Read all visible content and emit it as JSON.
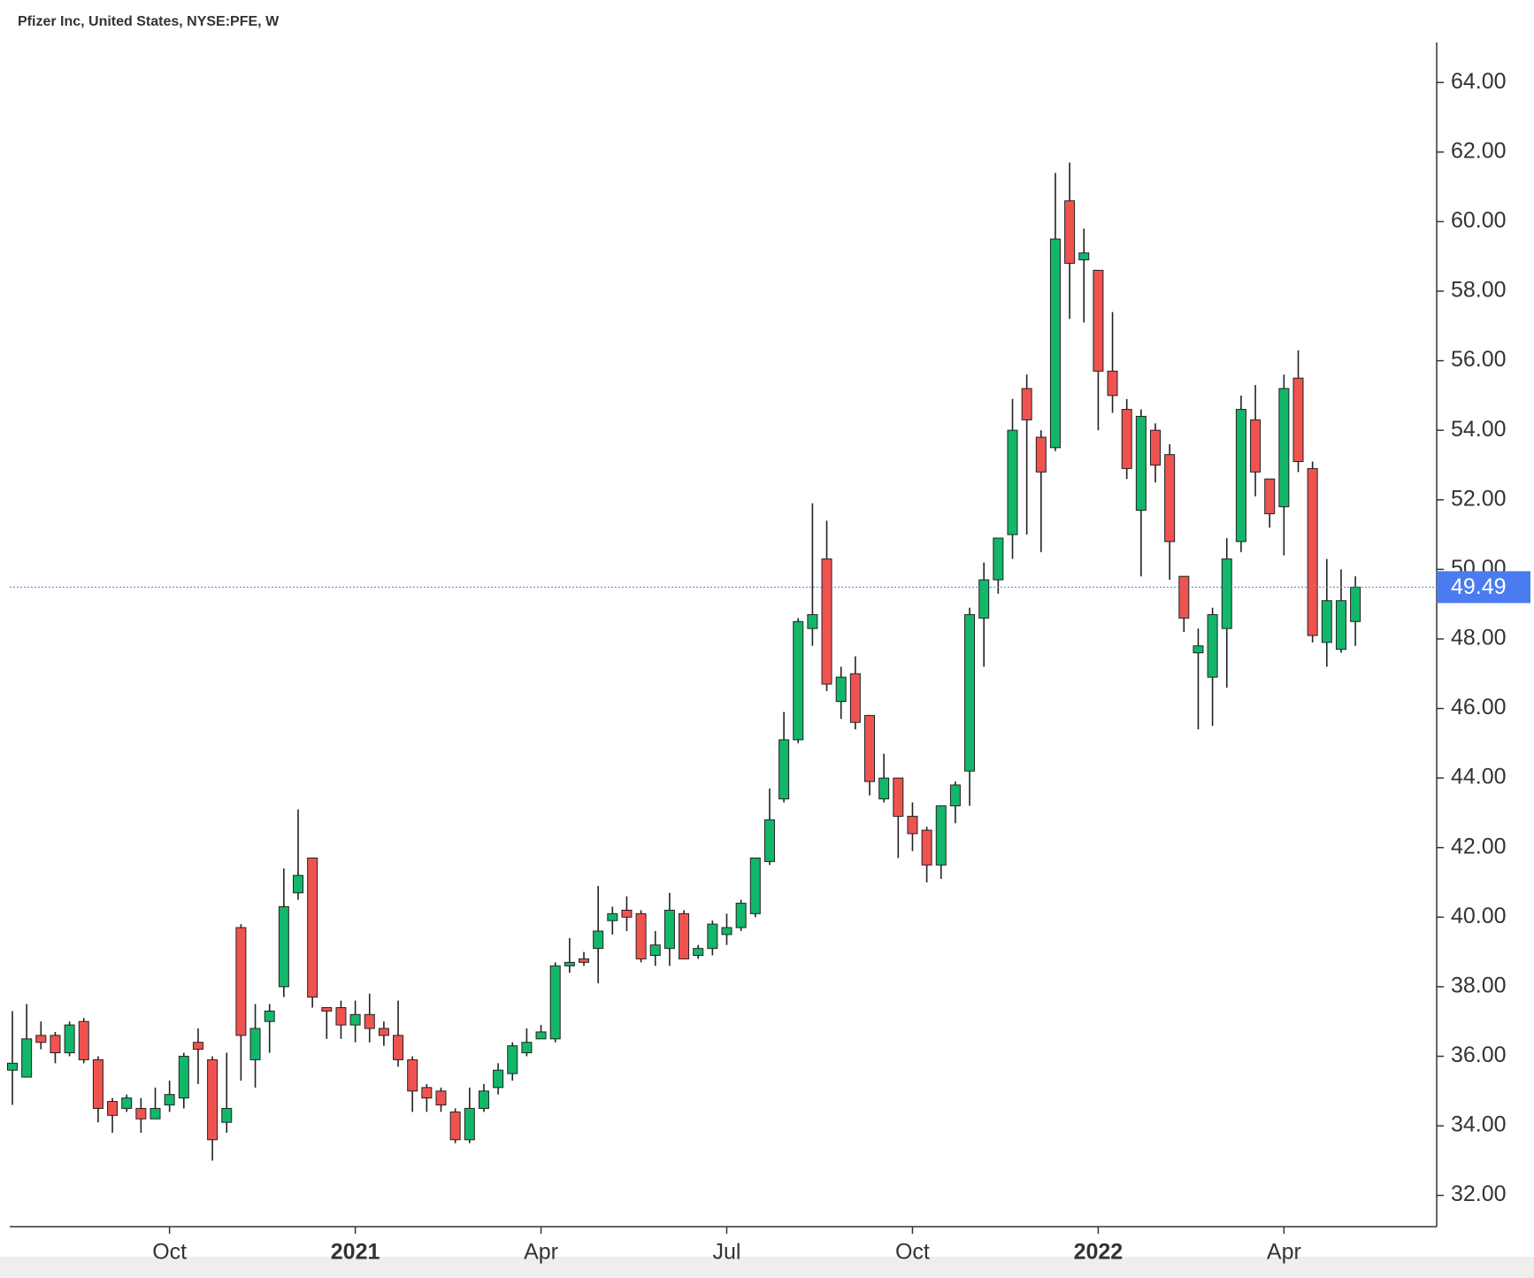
{
  "chart_data": {
    "type": "candlestick",
    "title": "Pfizer Inc, United States, NYSE:PFE, W",
    "categories": [
      null,
      null,
      null,
      null,
      null,
      null,
      null,
      null,
      null,
      null,
      null,
      "Oct",
      null,
      null,
      null,
      null,
      null,
      null,
      null,
      null,
      null,
      null,
      null,
      null,
      "2021",
      null,
      null,
      null,
      null,
      null,
      null,
      null,
      null,
      null,
      null,
      null,
      null,
      "Apr",
      null,
      null,
      null,
      null,
      null,
      null,
      null,
      null,
      null,
      null,
      null,
      null,
      "Jul",
      null,
      null,
      null,
      null,
      null,
      null,
      null,
      null,
      null,
      null,
      null,
      null,
      "Oct",
      null,
      null,
      null,
      null,
      null,
      null,
      null,
      null,
      null,
      null,
      null,
      null,
      "2022",
      null,
      null,
      null,
      null,
      null,
      null,
      null,
      null,
      null,
      null,
      null,
      null,
      "Apr",
      null,
      null,
      null,
      null,
      null
    ],
    "open": [
      35.6,
      35.4,
      36.6,
      36.6,
      36.1,
      37.0,
      35.9,
      34.7,
      34.5,
      34.5,
      34.2,
      34.6,
      34.8,
      36.4,
      35.9,
      34.1,
      39.7,
      35.9,
      37.0,
      38.0,
      40.7,
      41.7,
      37.4,
      37.4,
      36.9,
      37.2,
      36.8,
      36.6,
      35.9,
      35.1,
      35.0,
      34.4,
      33.6,
      34.5,
      35.1,
      35.5,
      36.1,
      36.5,
      36.5,
      38.6,
      38.8,
      39.1,
      39.9,
      40.2,
      40.1,
      38.9,
      39.1,
      40.1,
      38.9,
      39.1,
      39.5,
      39.7,
      40.1,
      41.6,
      43.4,
      45.1,
      48.3,
      50.3,
      46.2,
      47.0,
      45.8,
      43.4,
      44.0,
      42.9,
      42.5,
      41.5,
      43.2,
      44.2,
      48.6,
      49.7,
      51.0,
      55.2,
      53.8,
      53.5,
      60.6,
      58.9,
      58.6,
      55.7,
      54.6,
      51.7,
      54.0,
      53.3,
      49.8,
      47.6,
      46.9,
      48.3,
      50.8,
      54.3,
      52.6,
      51.8,
      55.5,
      52.9,
      47.9,
      47.7,
      48.5
    ],
    "high": [
      37.3,
      37.5,
      37.0,
      36.7,
      37.0,
      37.1,
      36.0,
      34.8,
      34.9,
      34.8,
      35.1,
      35.3,
      36.1,
      36.8,
      36.0,
      36.1,
      39.8,
      37.5,
      37.5,
      41.4,
      43.1,
      41.7,
      37.4,
      37.6,
      37.6,
      37.8,
      37.0,
      37.6,
      36.0,
      35.2,
      35.1,
      34.5,
      35.1,
      35.2,
      35.8,
      36.4,
      36.8,
      36.9,
      38.7,
      39.4,
      39.0,
      40.9,
      40.3,
      40.6,
      40.2,
      39.6,
      40.7,
      40.2,
      39.2,
      39.9,
      40.1,
      40.5,
      41.7,
      43.7,
      45.9,
      48.6,
      51.9,
      51.4,
      47.2,
      47.5,
      45.8,
      44.7,
      44.0,
      43.3,
      42.6,
      43.2,
      43.9,
      48.9,
      50.2,
      50.9,
      54.9,
      55.6,
      54.0,
      61.4,
      61.7,
      59.8,
      58.6,
      57.4,
      54.9,
      54.6,
      54.2,
      53.6,
      49.8,
      48.3,
      48.9,
      50.9,
      55.0,
      55.3,
      52.6,
      55.6,
      56.3,
      53.1,
      50.3,
      50.0,
      49.8
    ],
    "low": [
      34.6,
      35.4,
      36.2,
      35.8,
      36.0,
      35.8,
      34.1,
      33.8,
      34.4,
      33.8,
      34.2,
      34.4,
      34.5,
      35.2,
      33.0,
      33.8,
      35.3,
      35.1,
      36.1,
      37.7,
      40.5,
      37.4,
      36.5,
      36.5,
      36.4,
      36.4,
      36.3,
      35.7,
      34.4,
      34.4,
      34.4,
      33.5,
      33.5,
      34.4,
      34.9,
      35.3,
      36.0,
      36.5,
      36.4,
      38.4,
      38.6,
      38.1,
      39.5,
      39.6,
      38.7,
      38.6,
      38.6,
      38.8,
      38.8,
      38.9,
      39.2,
      39.6,
      40.0,
      41.5,
      43.3,
      45.0,
      47.8,
      46.5,
      45.7,
      45.4,
      43.5,
      43.3,
      41.7,
      41.9,
      41.0,
      41.1,
      42.7,
      43.2,
      47.2,
      49.3,
      50.3,
      51.0,
      50.5,
      53.4,
      57.2,
      57.1,
      54.0,
      54.5,
      52.6,
      49.8,
      52.5,
      49.7,
      48.2,
      45.4,
      45.5,
      46.6,
      50.5,
      52.1,
      51.2,
      50.4,
      52.8,
      47.9,
      47.2,
      47.6,
      47.8
    ],
    "close": [
      35.8,
      36.5,
      36.4,
      36.1,
      36.9,
      35.9,
      34.5,
      34.3,
      34.8,
      34.2,
      34.5,
      34.9,
      36.0,
      36.2,
      33.6,
      34.5,
      36.6,
      36.8,
      37.3,
      40.3,
      41.2,
      37.7,
      37.3,
      36.9,
      37.2,
      36.8,
      36.6,
      35.9,
      35.0,
      34.8,
      34.6,
      33.6,
      34.5,
      35.0,
      35.6,
      36.3,
      36.4,
      36.7,
      38.6,
      38.7,
      38.7,
      39.6,
      40.1,
      40.0,
      38.8,
      39.2,
      40.2,
      38.8,
      39.1,
      39.8,
      39.7,
      40.4,
      41.7,
      42.8,
      45.1,
      48.5,
      48.7,
      46.7,
      46.9,
      45.6,
      43.9,
      44.0,
      42.9,
      42.4,
      41.5,
      43.2,
      43.8,
      48.7,
      49.7,
      50.9,
      54.0,
      54.3,
      52.8,
      59.5,
      58.8,
      59.1,
      55.7,
      55.0,
      52.9,
      54.4,
      53.0,
      50.8,
      48.6,
      47.8,
      48.7,
      50.3,
      54.6,
      52.8,
      51.6,
      55.2,
      53.1,
      48.1,
      49.1,
      49.1,
      49.49
    ],
    "up_color": "#12b76a",
    "down_color": "#ef5350",
    "last_price": 49.49,
    "last_price_color": "#4a7cf0",
    "ylim": [
      31.1,
      65.1
    ],
    "yticks": [
      {
        "value": 32,
        "label": "32.00"
      },
      {
        "value": 34,
        "label": "34.00"
      },
      {
        "value": 36,
        "label": "36.00"
      },
      {
        "value": 38,
        "label": "38.00"
      },
      {
        "value": 40,
        "label": "40.00"
      },
      {
        "value": 42,
        "label": "42.00"
      },
      {
        "value": 44,
        "label": "44.00"
      },
      {
        "value": 46,
        "label": "46.00"
      },
      {
        "value": 48,
        "label": "48.00"
      },
      {
        "value": 50,
        "label": "50.00"
      },
      {
        "value": 52,
        "label": "52.00"
      },
      {
        "value": 54,
        "label": "54.00"
      },
      {
        "value": 56,
        "label": "56.00"
      },
      {
        "value": 58,
        "label": "58.00"
      },
      {
        "value": 60,
        "label": "60.00"
      },
      {
        "value": 62,
        "label": "62.00"
      },
      {
        "value": 64,
        "label": "64.00"
      }
    ],
    "grid": false
  }
}
